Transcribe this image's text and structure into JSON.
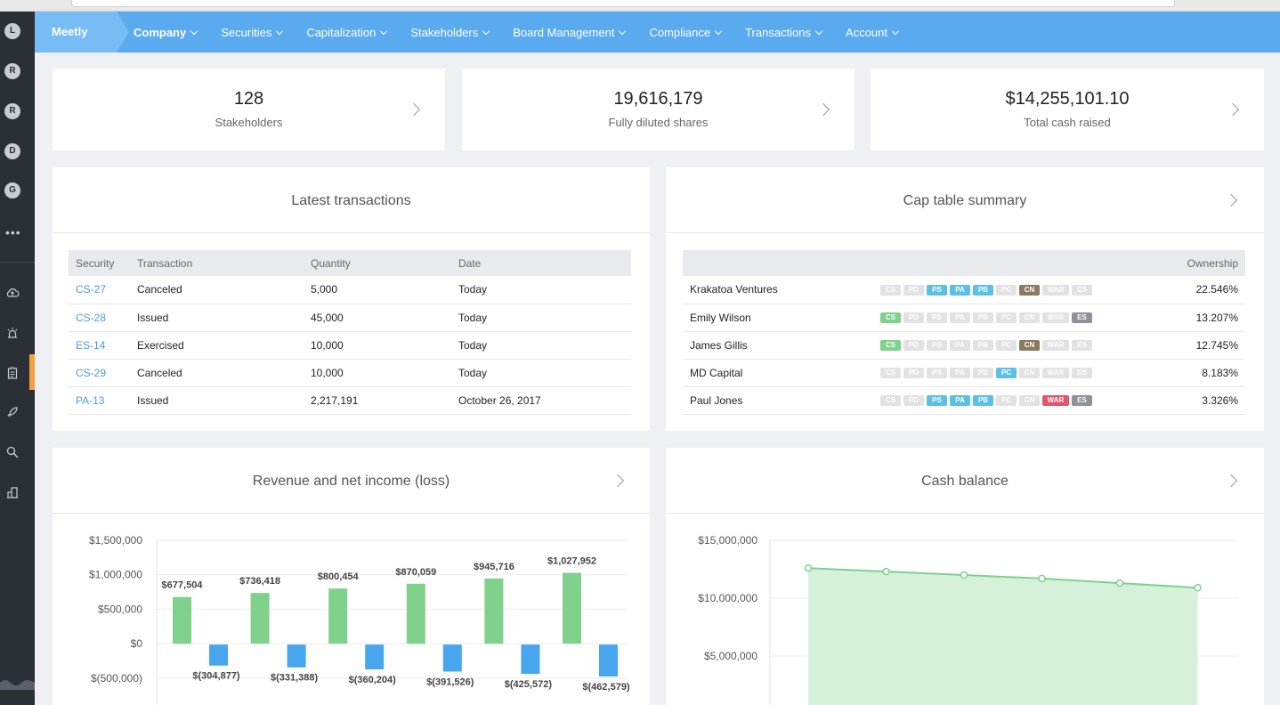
{
  "nav": {
    "brand": "Meetly",
    "items": [
      {
        "label": "Company",
        "active": true
      },
      {
        "label": "Securities"
      },
      {
        "label": "Capitalization"
      },
      {
        "label": "Stakeholders"
      },
      {
        "label": "Board Management"
      },
      {
        "label": "Compliance"
      },
      {
        "label": "Transactions"
      },
      {
        "label": "Account"
      }
    ]
  },
  "rail": {
    "avatars": [
      "L",
      "R",
      "R",
      "D",
      "G"
    ],
    "more": "•••",
    "icons": [
      "cloud-upload-icon",
      "alarm-icon",
      "clipboard-icon",
      "rocket-icon",
      "search-icon",
      "building-icon"
    ]
  },
  "stats": [
    {
      "value": "128",
      "label": "Stakeholders"
    },
    {
      "value": "19,616,179",
      "label": "Fully diluted shares"
    },
    {
      "value": "$14,255,101.10",
      "label": "Total cash raised"
    }
  ],
  "transactions": {
    "title": "Latest transactions",
    "columns": [
      "Security",
      "Transaction",
      "Quantity",
      "Date"
    ],
    "rows": [
      {
        "security": "CS-27",
        "transaction": "Canceled",
        "quantity": "5,000",
        "date": "Today"
      },
      {
        "security": "CS-28",
        "transaction": "Issued",
        "quantity": "45,000",
        "date": "Today"
      },
      {
        "security": "ES-14",
        "transaction": "Exercised",
        "quantity": "10,000",
        "date": "Today"
      },
      {
        "security": "CS-29",
        "transaction": "Canceled",
        "quantity": "10,000",
        "date": "Today"
      },
      {
        "security": "PA-13",
        "transaction": "Issued",
        "quantity": "2,217,191",
        "date": "October 26, 2017"
      }
    ]
  },
  "captable": {
    "title": "Cap table summary",
    "ownership_header": "Ownership",
    "badge_labels": [
      "CS",
      "PD",
      "PS",
      "PA",
      "PB",
      "PC",
      "CN",
      "WAR",
      "ES"
    ],
    "badge_colors": {
      "CS": "#7fd18b",
      "PD": "#e2e2e2",
      "PS": "#5cc0e4",
      "PA": "#5cc0e4",
      "PB": "#5cc0e4",
      "PC": "#5cc0e4",
      "CN": "#8c7a60",
      "WAR": "#e0566d",
      "ES": "#8e9196",
      "off": "#e2e2e2"
    },
    "rows": [
      {
        "name": "Krakatoa Ventures",
        "active": [
          "PS",
          "PA",
          "PB",
          "CN"
        ],
        "ownership": "22.546%"
      },
      {
        "name": "Emily Wilson",
        "active": [
          "CS",
          "ES"
        ],
        "ownership": "13.207%"
      },
      {
        "name": "James Gillis",
        "active": [
          "CS",
          "CN"
        ],
        "ownership": "12.745%"
      },
      {
        "name": "MD Capital",
        "active": [
          "PC"
        ],
        "ownership": "8.183%"
      },
      {
        "name": "Paul Jones",
        "active": [
          "PS",
          "PA",
          "PB",
          "WAR",
          "ES"
        ],
        "ownership": "3.326%"
      }
    ]
  },
  "revenue_panel": {
    "title": "Revenue and net income (loss)"
  },
  "cash_panel": {
    "title": "Cash balance"
  },
  "chart_data": [
    {
      "type": "bar",
      "title": "Revenue and net income (loss)",
      "categories": [
        "",
        "",
        "",
        "",
        "",
        ""
      ],
      "series": [
        {
          "values": [
            677504,
            736418,
            800454,
            870059,
            945716,
            1027952
          ],
          "labels": [
            "$677,504",
            "$736,418",
            "$800,454",
            "$870,059",
            "$945,716",
            "$1,027,952"
          ],
          "color": "#7fd18b"
        },
        {
          "values": [
            -304877,
            -331388,
            -360204,
            -391526,
            -425572,
            -462579
          ],
          "labels": [
            "$(304,877)",
            "$(331,388)",
            "$(360,204)",
            "$(391,526)",
            "$(425,572)",
            "$(462,579)"
          ],
          "color": "#47a6ee"
        }
      ],
      "yticks": [
        1500000,
        1000000,
        500000,
        0,
        -500000
      ],
      "ytick_labels": [
        "$1,500,000",
        "$1,000,000",
        "$500,000",
        "$0",
        "$(500,000)"
      ],
      "ylim": [
        -500000,
        1500000
      ],
      "grid": true
    },
    {
      "type": "area",
      "title": "Cash balance",
      "values": [
        12600000,
        12300000,
        12000000,
        11700000,
        11300000,
        10900000
      ],
      "yticks": [
        15000000,
        10000000,
        5000000
      ],
      "ytick_labels": [
        "$15,000,000",
        "$10,000,000",
        "$5,000,000"
      ],
      "ylim": [
        0,
        15000000
      ],
      "color": "#7fd18b",
      "grid": true
    }
  ]
}
